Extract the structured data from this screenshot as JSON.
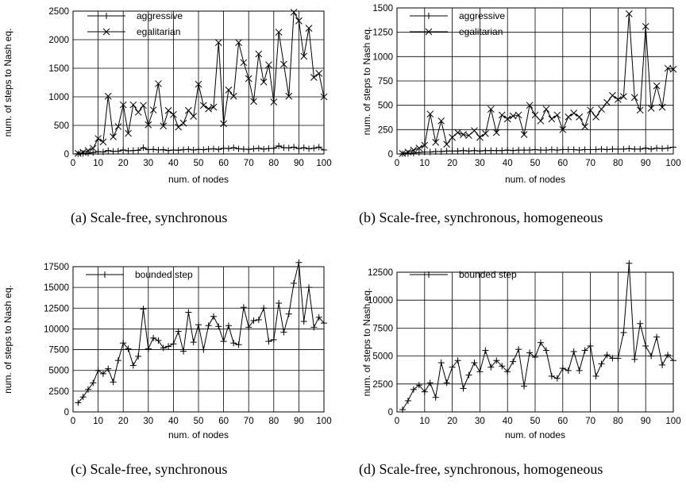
{
  "chart_data": [
    {
      "type": "line",
      "ylabel": "num. of steps to Nash eq.",
      "xlabel": "num. of nodes",
      "xlim": [
        0,
        100
      ],
      "ylim": [
        0,
        2500
      ],
      "xticks": [
        0,
        10,
        20,
        30,
        40,
        50,
        60,
        70,
        80,
        90,
        100
      ],
      "yticks": [
        0,
        500,
        1000,
        1500,
        2000,
        2500
      ],
      "legend_position": "top-left",
      "grid": true,
      "caption": "(a) Scale-free, synchronous",
      "series": [
        {
          "name": "aggressive",
          "marker": "plus",
          "x": [
            2,
            4,
            6,
            8,
            10,
            12,
            14,
            16,
            18,
            20,
            22,
            24,
            26,
            28,
            30,
            32,
            34,
            36,
            38,
            40,
            42,
            44,
            46,
            48,
            50,
            52,
            54,
            56,
            58,
            60,
            62,
            64,
            66,
            68,
            70,
            72,
            74,
            76,
            78,
            80,
            82,
            84,
            86,
            88,
            90,
            92,
            94,
            96,
            98,
            100
          ],
          "y": [
            3,
            8,
            15,
            25,
            40,
            35,
            60,
            45,
            50,
            70,
            55,
            60,
            65,
            110,
            75,
            80,
            70,
            75,
            60,
            70,
            65,
            75,
            80,
            70,
            80,
            75,
            85,
            90,
            80,
            100,
            95,
            110,
            90,
            85,
            80,
            90,
            100,
            85,
            95,
            100,
            140,
            110,
            105,
            120,
            95,
            110,
            90,
            100,
            120,
            70
          ]
        },
        {
          "name": "egalitarian",
          "marker": "cross",
          "x": [
            2,
            4,
            6,
            8,
            10,
            12,
            14,
            16,
            18,
            20,
            22,
            24,
            26,
            28,
            30,
            32,
            34,
            36,
            38,
            40,
            42,
            44,
            46,
            48,
            50,
            52,
            54,
            56,
            58,
            60,
            62,
            64,
            66,
            68,
            70,
            72,
            74,
            76,
            78,
            80,
            82,
            84,
            86,
            88,
            90,
            92,
            94,
            96,
            98,
            100
          ],
          "y": [
            10,
            30,
            60,
            100,
            270,
            210,
            1010,
            300,
            480,
            860,
            360,
            860,
            730,
            850,
            510,
            770,
            1230,
            490,
            760,
            690,
            470,
            540,
            760,
            660,
            1220,
            850,
            790,
            820,
            1950,
            530,
            1120,
            1010,
            1950,
            1600,
            1320,
            920,
            1750,
            1260,
            1560,
            910,
            2130,
            1570,
            1010,
            2480,
            2330,
            1710,
            2200,
            1340,
            1410,
            1000
          ]
        }
      ]
    },
    {
      "type": "line",
      "ylabel": "num. of steps to Nash eq.",
      "xlabel": "num. of nodes",
      "xlim": [
        0,
        100
      ],
      "ylim": [
        0,
        1500
      ],
      "xticks": [
        0,
        10,
        20,
        30,
        40,
        50,
        60,
        70,
        80,
        90,
        100
      ],
      "yticks": [
        0,
        250,
        500,
        750,
        1000,
        1250,
        1500
      ],
      "legend_position": "top-left",
      "grid": true,
      "caption": "(b) Scale-free, synchronous, homogeneous",
      "series": [
        {
          "name": "aggressive",
          "marker": "plus",
          "x": [
            2,
            4,
            6,
            8,
            10,
            12,
            14,
            16,
            18,
            20,
            22,
            24,
            26,
            28,
            30,
            32,
            34,
            36,
            38,
            40,
            42,
            44,
            46,
            48,
            50,
            52,
            54,
            56,
            58,
            60,
            62,
            64,
            66,
            68,
            70,
            72,
            74,
            76,
            78,
            80,
            82,
            84,
            86,
            88,
            90,
            92,
            94,
            96,
            98,
            100
          ],
          "y": [
            2,
            5,
            10,
            15,
            20,
            20,
            25,
            25,
            30,
            30,
            30,
            35,
            30,
            35,
            30,
            35,
            35,
            35,
            35,
            40,
            35,
            40,
            40,
            40,
            45,
            40,
            40,
            45,
            40,
            45,
            45,
            45,
            40,
            45,
            45,
            45,
            50,
            45,
            50,
            50,
            50,
            55,
            50,
            50,
            60,
            50,
            60,
            55,
            60,
            70
          ]
        },
        {
          "name": "egalitarian",
          "marker": "cross",
          "x": [
            2,
            4,
            6,
            8,
            10,
            12,
            14,
            16,
            18,
            20,
            22,
            24,
            26,
            28,
            30,
            32,
            34,
            36,
            38,
            40,
            42,
            44,
            46,
            48,
            50,
            52,
            54,
            56,
            58,
            60,
            62,
            64,
            66,
            68,
            70,
            72,
            74,
            76,
            78,
            80,
            82,
            84,
            86,
            88,
            90,
            92,
            94,
            96,
            98,
            100
          ],
          "y": [
            5,
            20,
            40,
            60,
            90,
            410,
            120,
            340,
            100,
            170,
            220,
            200,
            190,
            240,
            170,
            210,
            460,
            220,
            400,
            360,
            390,
            400,
            200,
            500,
            400,
            340,
            460,
            360,
            400,
            250,
            380,
            420,
            380,
            280,
            450,
            380,
            460,
            530,
            600,
            560,
            590,
            1440,
            580,
            450,
            1310,
            470,
            700,
            480,
            880,
            870
          ]
        }
      ]
    },
    {
      "type": "line",
      "ylabel": "num. of steps to Nash eq.",
      "xlabel": "num. of nodes",
      "xlim": [
        0,
        100
      ],
      "ylim": [
        0,
        17500
      ],
      "xticks": [
        0,
        10,
        20,
        30,
        40,
        50,
        60,
        70,
        80,
        90,
        100
      ],
      "yticks": [
        0,
        2500,
        5000,
        7500,
        10000,
        12500,
        15000,
        17500
      ],
      "legend_position": "top-left",
      "grid": true,
      "caption": "(c) Scale-free, synchronous",
      "series": [
        {
          "name": "bounded step",
          "marker": "plus",
          "x": [
            2,
            4,
            6,
            8,
            10,
            12,
            14,
            16,
            18,
            20,
            22,
            24,
            26,
            28,
            30,
            32,
            34,
            36,
            38,
            40,
            42,
            44,
            46,
            48,
            50,
            52,
            54,
            56,
            58,
            60,
            62,
            64,
            66,
            68,
            70,
            72,
            74,
            76,
            78,
            80,
            82,
            84,
            86,
            88,
            90,
            92,
            94,
            96,
            98,
            100
          ],
          "y": [
            1100,
            1800,
            2700,
            3500,
            5000,
            4600,
            5200,
            3600,
            6200,
            8300,
            7600,
            5600,
            6700,
            12400,
            7600,
            8900,
            8600,
            7700,
            7900,
            8200,
            9700,
            7300,
            12000,
            8400,
            10500,
            7500,
            10400,
            11500,
            10300,
            8500,
            10400,
            8300,
            8100,
            12600,
            10200,
            11000,
            11100,
            12500,
            8500,
            8700,
            13100,
            9600,
            11800,
            15500,
            18000,
            10900,
            15000,
            10200,
            11400,
            10700
          ]
        }
      ]
    },
    {
      "type": "line",
      "ylabel": "num. of steps to Nash eq.",
      "xlabel": "num. of nodes",
      "xlim": [
        0,
        100
      ],
      "ylim": [
        0,
        12500
      ],
      "xticks": [
        0,
        10,
        20,
        30,
        40,
        50,
        60,
        70,
        80,
        90,
        100
      ],
      "yticks": [
        0,
        2500,
        5000,
        7500,
        10000,
        12500
      ],
      "legend_position": "top-left",
      "grid": true,
      "caption": "(d) Scale-free, synchronous, homogeneous",
      "series": [
        {
          "name": "bounded step",
          "marker": "plus",
          "x": [
            2,
            4,
            6,
            8,
            10,
            12,
            14,
            16,
            18,
            20,
            22,
            24,
            26,
            28,
            30,
            32,
            34,
            36,
            38,
            40,
            42,
            44,
            46,
            48,
            50,
            52,
            54,
            56,
            58,
            60,
            62,
            64,
            66,
            68,
            70,
            72,
            74,
            76,
            78,
            80,
            82,
            84,
            86,
            88,
            90,
            92,
            94,
            96,
            98,
            100
          ],
          "y": [
            200,
            1000,
            2000,
            2400,
            1800,
            2600,
            1300,
            4400,
            2600,
            4000,
            4600,
            2100,
            3300,
            4400,
            3600,
            5500,
            4000,
            4600,
            4100,
            3600,
            4500,
            5600,
            2300,
            5300,
            4900,
            6200,
            5500,
            3200,
            3000,
            3900,
            3700,
            5400,
            3700,
            5500,
            5900,
            3200,
            4300,
            5100,
            4800,
            4800,
            7100,
            13300,
            4700,
            7900,
            5900,
            5000,
            6700,
            4200,
            5100,
            4600
          ]
        }
      ]
    }
  ]
}
